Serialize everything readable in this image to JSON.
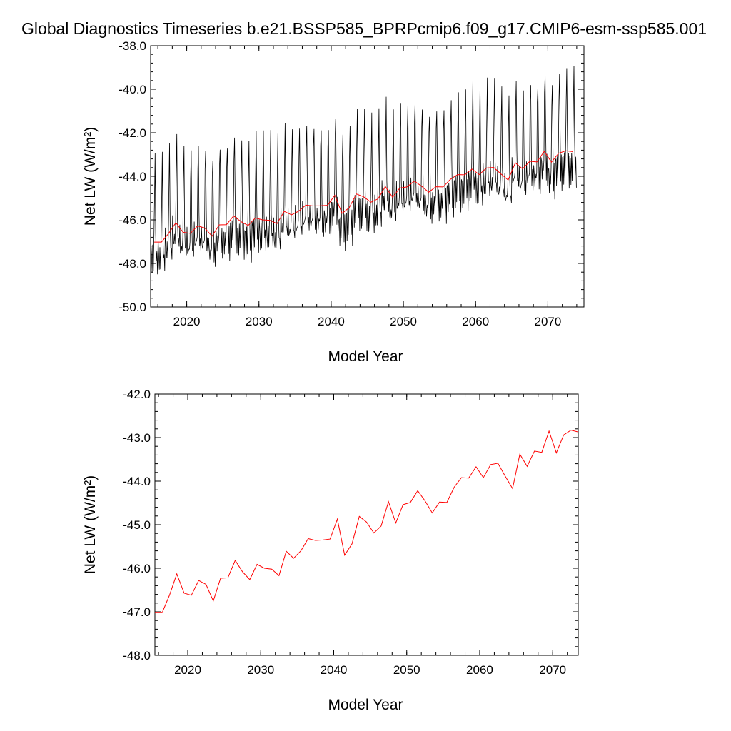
{
  "title": "Global Diagnostics Timeseries b.e21.BSSP585_BPRPcmip6.f09_g17.CMIP6-esm-ssp585.001",
  "colors": {
    "monthly": "#000000",
    "annual": "#ff0000",
    "frame": "#000000"
  },
  "chart_data": [
    {
      "type": "line",
      "xlabel": "Model Year",
      "ylabel": "Net LW (W/m²)",
      "xlim": [
        2015,
        2075
      ],
      "ylim": [
        -50.0,
        -38.0
      ],
      "xticks": [
        "2020",
        "2030",
        "2040",
        "2050",
        "2060",
        "2070"
      ],
      "yticks": [
        "-50.0",
        "-48.0",
        "-46.0",
        "-44.0",
        "-42.0",
        "-40.0",
        "-38.0"
      ],
      "grid": false,
      "series": [
        {
          "series_kind": "monthly",
          "color": "#000000",
          "x_start": 2015.04,
          "x_step": 0.08333,
          "month_template": [
            0.0,
            -0.6,
            -1.2,
            -0.4,
            -1.0,
            -0.2,
            2.4,
            3.8,
            0.6,
            -1.0,
            -0.4,
            -1.4
          ],
          "values_note": "monthly values = annual mean + seasonal offset",
          "values": []
        },
        {
          "series_kind": "annual",
          "color": "#ff0000",
          "x": [
            2015.5,
            2016.5,
            2017.5,
            2018.5,
            2019.5,
            2020.5,
            2021.5,
            2022.5,
            2023.5,
            2024.5,
            2025.5,
            2026.5,
            2027.5,
            2028.5,
            2029.5,
            2030.5,
            2031.5,
            2032.5,
            2033.5,
            2034.5,
            2035.5,
            2036.5,
            2037.5,
            2038.5,
            2039.5,
            2040.5,
            2041.5,
            2042.5,
            2043.5,
            2044.5,
            2045.5,
            2046.5,
            2047.5,
            2048.5,
            2049.5,
            2050.5,
            2051.5,
            2052.5,
            2053.5,
            2054.5,
            2055.5,
            2056.5,
            2057.5,
            2058.5,
            2059.5,
            2060.5,
            2061.5,
            2062.5,
            2063.5,
            2064.5,
            2065.5,
            2066.5,
            2067.5,
            2068.5,
            2069.5,
            2070.5,
            2071.5,
            2072.5,
            2073.5
          ],
          "values": [
            -47.02,
            -47.02,
            -46.62,
            -46.13,
            -46.57,
            -46.62,
            -46.28,
            -46.37,
            -46.75,
            -46.23,
            -46.22,
            -45.82,
            -46.08,
            -46.26,
            -45.91,
            -46.0,
            -46.02,
            -46.17,
            -45.61,
            -45.77,
            -45.6,
            -45.32,
            -45.36,
            -45.35,
            -45.33,
            -44.87,
            -45.7,
            -45.44,
            -44.81,
            -44.94,
            -45.19,
            -45.03,
            -44.47,
            -44.96,
            -44.54,
            -44.49,
            -44.22,
            -44.45,
            -44.73,
            -44.48,
            -44.49,
            -44.14,
            -43.92,
            -43.93,
            -43.67,
            -43.92,
            -43.62,
            -43.59,
            -43.89,
            -44.17,
            -43.38,
            -43.66,
            -43.31,
            -43.34,
            -42.85,
            -43.35,
            -42.94,
            -42.83,
            -42.87
          ]
        }
      ]
    },
    {
      "type": "line",
      "xlabel": "Model Year",
      "ylabel": "Net LW (W/m²)",
      "xlim": [
        2015.5,
        2073.5
      ],
      "ylim": [
        -48.0,
        -42.0
      ],
      "xticks": [
        "2020",
        "2030",
        "2040",
        "2050",
        "2060",
        "2070"
      ],
      "yticks": [
        "-48.0",
        "-47.0",
        "-46.0",
        "-45.0",
        "-44.0",
        "-43.0",
        "-42.0"
      ],
      "grid": false,
      "series": [
        {
          "series_kind": "annual",
          "color": "#ff0000",
          "x": [
            2015.5,
            2016.5,
            2017.5,
            2018.5,
            2019.5,
            2020.5,
            2021.5,
            2022.5,
            2023.5,
            2024.5,
            2025.5,
            2026.5,
            2027.5,
            2028.5,
            2029.5,
            2030.5,
            2031.5,
            2032.5,
            2033.5,
            2034.5,
            2035.5,
            2036.5,
            2037.5,
            2038.5,
            2039.5,
            2040.5,
            2041.5,
            2042.5,
            2043.5,
            2044.5,
            2045.5,
            2046.5,
            2047.5,
            2048.5,
            2049.5,
            2050.5,
            2051.5,
            2052.5,
            2053.5,
            2054.5,
            2055.5,
            2056.5,
            2057.5,
            2058.5,
            2059.5,
            2060.5,
            2061.5,
            2062.5,
            2063.5,
            2064.5,
            2065.5,
            2066.5,
            2067.5,
            2068.5,
            2069.5,
            2070.5,
            2071.5,
            2072.5,
            2073.5
          ],
          "values": [
            -47.02,
            -47.02,
            -46.62,
            -46.13,
            -46.57,
            -46.62,
            -46.28,
            -46.37,
            -46.75,
            -46.23,
            -46.22,
            -45.82,
            -46.08,
            -46.26,
            -45.91,
            -46.0,
            -46.02,
            -46.17,
            -45.61,
            -45.77,
            -45.6,
            -45.32,
            -45.36,
            -45.35,
            -45.33,
            -44.87,
            -45.7,
            -45.44,
            -44.81,
            -44.94,
            -45.19,
            -45.03,
            -44.47,
            -44.96,
            -44.54,
            -44.49,
            -44.22,
            -44.45,
            -44.73,
            -44.48,
            -44.49,
            -44.14,
            -43.92,
            -43.93,
            -43.67,
            -43.92,
            -43.62,
            -43.59,
            -43.89,
            -44.17,
            -43.38,
            -43.66,
            -43.31,
            -43.34,
            -42.85,
            -43.35,
            -42.94,
            -42.83,
            -42.87
          ]
        }
      ]
    }
  ]
}
